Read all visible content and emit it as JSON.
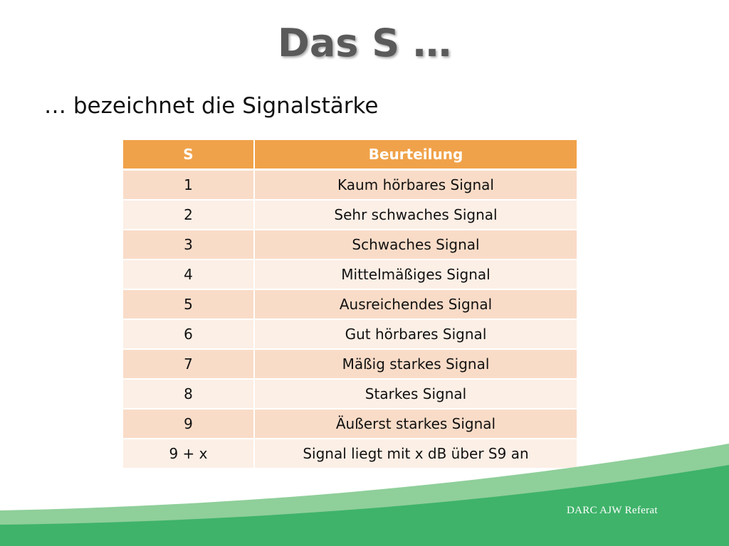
{
  "slide": {
    "title": "Das S …",
    "subtitle": "… bezeichnet die Signalstärke"
  },
  "table": {
    "headers": [
      "S",
      "Beurteilung"
    ],
    "rows": [
      [
        "1",
        "Kaum hörbares Signal"
      ],
      [
        "2",
        "Sehr schwaches Signal"
      ],
      [
        "3",
        "Schwaches Signal"
      ],
      [
        "4",
        "Mittelmäßiges Signal"
      ],
      [
        "5",
        "Ausreichendes Signal"
      ],
      [
        "6",
        "Gut hörbares Signal"
      ],
      [
        "7",
        "Mäßig starkes Signal"
      ],
      [
        "8",
        "Starkes Signal"
      ],
      [
        "9",
        "Äußerst starkes Signal"
      ],
      [
        "9 + x",
        "Signal liegt mit x dB über S9 an"
      ]
    ]
  },
  "footer": {
    "text": "DARC AJW Referat"
  },
  "colors": {
    "header_bg": "#f0a24a",
    "row_odd": "#f9dcc8",
    "row_even": "#fcefe6",
    "wave_light": "#8fcf9a",
    "wave_dark": "#3fb36a"
  }
}
